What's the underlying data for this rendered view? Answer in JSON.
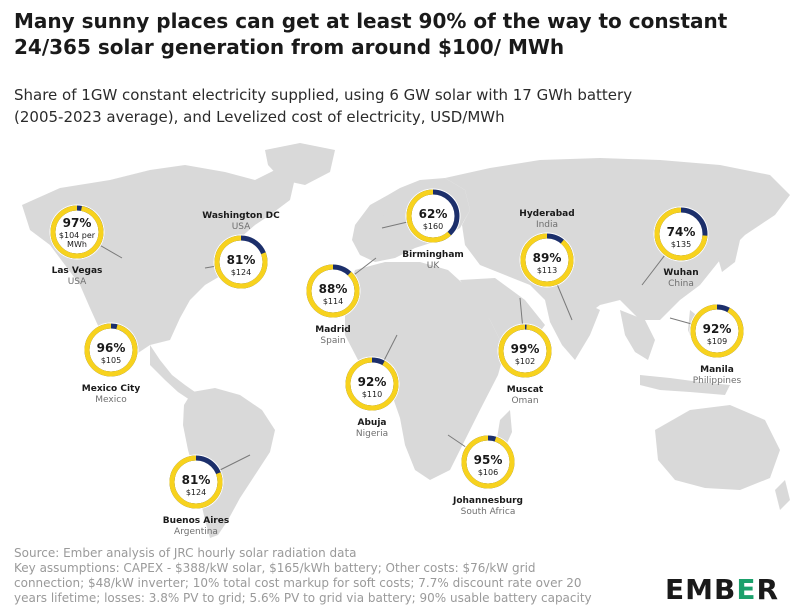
{
  "title": {
    "line1": "Many sunny places can get at least 90% of the way to constant",
    "line2": "24/365 solar generation from around $100/ MWh"
  },
  "subtitle": {
    "line1": "Share of 1GW constant electricity supplied, using 6 GW solar with 17 GWh battery",
    "line2": "(2005-2023 average), and Levelized cost of electricity, USD/MWh"
  },
  "colors": {
    "ring_share": "#f7d21e",
    "ring_remainder": "#1c2f6b",
    "land": "#d9d9d9",
    "brand_accent": "#1ba06b"
  },
  "chart_data": {
    "type": "map-donut",
    "series": [
      {
        "values_field": "share_pct"
      }
    ],
    "locations": [
      {
        "city": "Las Vegas",
        "country": "USA",
        "share_pct": 97,
        "share_label": "97%",
        "cost_label": "$104 per",
        "cost_label_2": "MWh"
      },
      {
        "city": "Washington DC",
        "country": "USA",
        "share_pct": 81,
        "share_label": "81%",
        "cost_label": "$124"
      },
      {
        "city": "Mexico City",
        "country": "Mexico",
        "share_pct": 96,
        "share_label": "96%",
        "cost_label": "$105"
      },
      {
        "city": "Buenos Aires",
        "country": "Argentina",
        "share_pct": 81,
        "share_label": "81%",
        "cost_label": "$124"
      },
      {
        "city": "Birmingham",
        "country": "UK",
        "share_pct": 62,
        "share_label": "62%",
        "cost_label": "$160"
      },
      {
        "city": "Madrid",
        "country": "Spain",
        "share_pct": 88,
        "share_label": "88%",
        "cost_label": "$114"
      },
      {
        "city": "Abuja",
        "country": "Nigeria",
        "share_pct": 92,
        "share_label": "92%",
        "cost_label": "$110"
      },
      {
        "city": "Johannesburg",
        "country": "South Africa",
        "share_pct": 95,
        "share_label": "95%",
        "cost_label": "$106"
      },
      {
        "city": "Muscat",
        "country": "Oman",
        "share_pct": 99,
        "share_label": "99%",
        "cost_label": "$102"
      },
      {
        "city": "Hyderabad",
        "country": "India",
        "share_pct": 89,
        "share_label": "89%",
        "cost_label": "$113"
      },
      {
        "city": "Wuhan",
        "country": "China",
        "share_pct": 74,
        "share_label": "74%",
        "cost_label": "$135"
      },
      {
        "city": "Manila",
        "country": "Philippines",
        "share_pct": 92,
        "share_label": "92%",
        "cost_label": "$109"
      }
    ]
  },
  "footer": {
    "line1": "Source: Ember analysis of JRC hourly solar radiation data",
    "line2": "Key assumptions: CAPEX - $388/kW solar, $165/kWh battery; Other costs: $76/kW grid",
    "line3": "connection; $48/kW inverter; 10% total cost markup for soft costs; 7.7% discount rate over 20",
    "line4": "years lifetime; losses: 3.8% PV to grid; 5.6% PV to grid via battery; 90% usable battery capacity"
  },
  "logo": {
    "text_main": "EMB",
    "text_accent": "E",
    "text_end": "R"
  }
}
